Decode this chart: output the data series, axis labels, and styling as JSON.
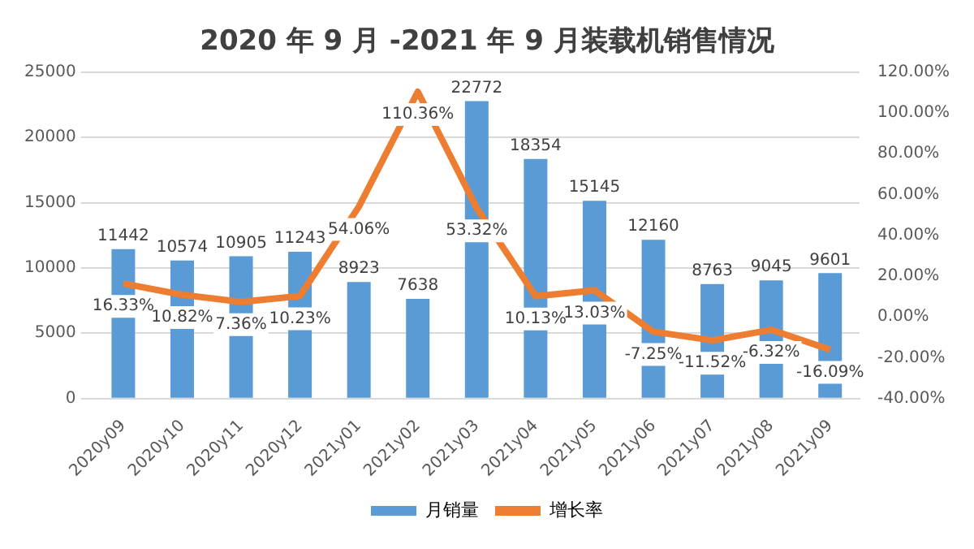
{
  "chart_data": {
    "type": "bar",
    "title": "2020 年 9 月 -2021 年 9 月装载机销售情况",
    "categories": [
      "2020y09",
      "2020y10",
      "2020y11",
      "2020y12",
      "2021y01",
      "2021y02",
      "2021y03",
      "2021y04",
      "2021y05",
      "2021y06",
      "2021y07",
      "2021y08",
      "2021y09"
    ],
    "series": [
      {
        "name": "月销量",
        "color": "#5b9bd5",
        "values": [
          11442,
          10574,
          10905,
          11243,
          8923,
          7638,
          22772,
          18354,
          15145,
          12160,
          8763,
          9045,
          9601
        ]
      },
      {
        "name": "增长率",
        "type": "line",
        "axis": "y2",
        "color": "#ed7d31",
        "values": [
          16.33,
          10.82,
          7.36,
          10.23,
          54.06,
          110.36,
          53.32,
          10.13,
          13.03,
          -7.25,
          -11.52,
          -6.32,
          -16.09
        ],
        "value_labels": [
          "16.33%",
          "10.82%",
          "7.36%",
          "10.23%",
          "54.06%",
          "110.36%",
          "53.32%",
          "10.13%",
          "13.03%",
          "-7.25%",
          "-11.52%",
          "-6.32%",
          "-16.09%"
        ]
      }
    ],
    "data_labels": true,
    "ylim": [
      0,
      25000
    ],
    "yticks": [
      0,
      5000,
      10000,
      15000,
      20000,
      25000
    ],
    "y2lim": [
      -40,
      120
    ],
    "y2ticks": [
      {
        "value": -40,
        "label": "-40.00%"
      },
      {
        "value": -20,
        "label": "-20.00%"
      },
      {
        "value": 0,
        "label": "0.00%"
      },
      {
        "value": 20,
        "label": "20.00%"
      },
      {
        "value": 40,
        "label": "40.00%"
      },
      {
        "value": 60,
        "label": "60.00%"
      },
      {
        "value": 80,
        "label": "80.00%"
      },
      {
        "value": 100,
        "label": "100.00%"
      },
      {
        "value": 120,
        "label": "120.00%"
      }
    ],
    "grid": "y",
    "legend": "bottom",
    "marker": "none",
    "line_style": "solid"
  }
}
